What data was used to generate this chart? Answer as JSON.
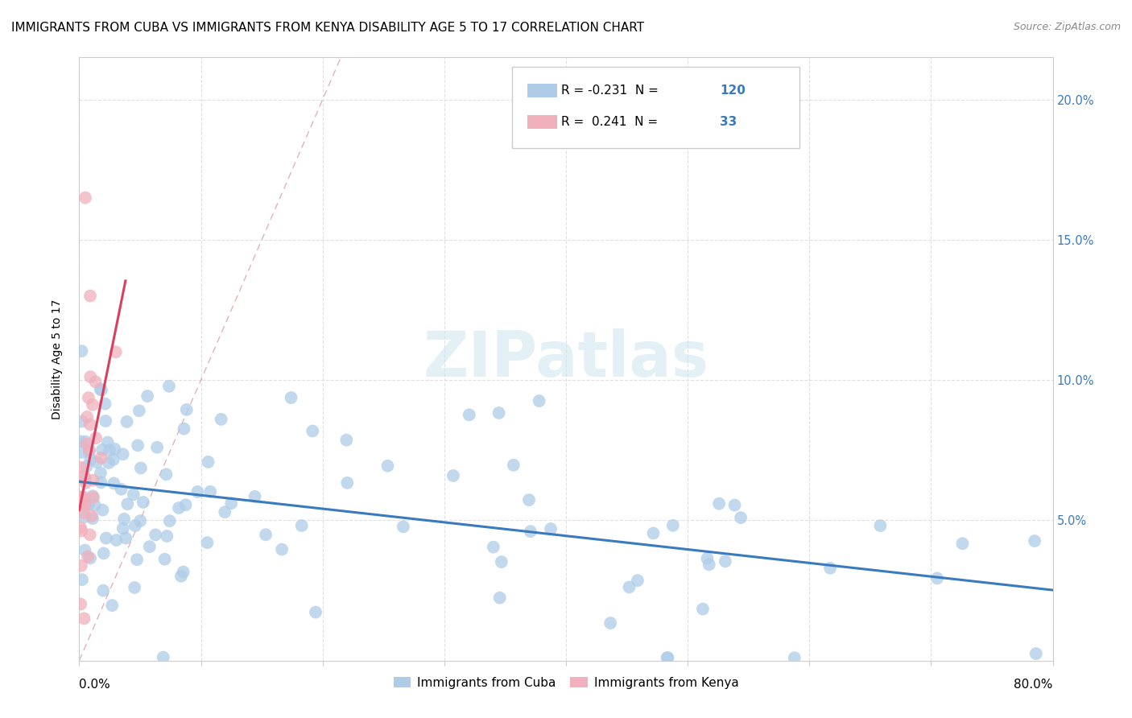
{
  "title": "IMMIGRANTS FROM CUBA VS IMMIGRANTS FROM KENYA DISABILITY AGE 5 TO 17 CORRELATION CHART",
  "source": "Source: ZipAtlas.com",
  "ylabel": "Disability Age 5 to 17",
  "right_yticks": [
    0.05,
    0.1,
    0.15,
    0.2
  ],
  "right_ytick_labels": [
    "5.0%",
    "10.0%",
    "15.0%",
    "20.0%"
  ],
  "cuba_R": -0.231,
  "cuba_N": 120,
  "kenya_R": 0.241,
  "kenya_N": 33,
  "xlim": [
    0,
    0.8
  ],
  "ylim": [
    0,
    0.215
  ],
  "cuba_color": "#aecce8",
  "kenya_color": "#f0b0bc",
  "cuba_line_color": "#3a7abf",
  "kenya_line_color": "#d94060",
  "diag_line_color": "#d8a0a8",
  "background_color": "#ffffff",
  "grid_color": "#e0e0e0",
  "title_fontsize": 11,
  "source_fontsize": 9,
  "watermark_text": "ZIPatlas",
  "watermark_color": "#cce4f0",
  "legend_label_cuba": "Immigrants from Cuba",
  "legend_label_kenya": "Immigrants from Kenya",
  "legend_R_cuba": "R = -0.231",
  "legend_N_cuba": "N = 120",
  "legend_R_kenya": "R =  0.241",
  "legend_N_kenya": "N =  33",
  "legend_N_color": "#3a7abf",
  "marker_size": 130
}
